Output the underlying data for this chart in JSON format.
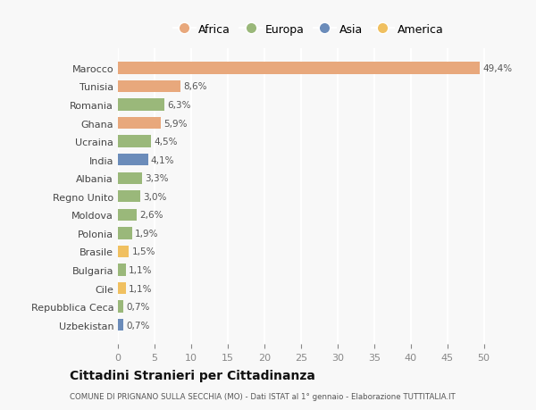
{
  "countries": [
    "Uzbekistan",
    "Repubblica Ceca",
    "Cile",
    "Bulgaria",
    "Brasile",
    "Polonia",
    "Moldova",
    "Regno Unito",
    "Albania",
    "India",
    "Ucraina",
    "Ghana",
    "Romania",
    "Tunisia",
    "Marocco"
  ],
  "values": [
    0.7,
    0.7,
    1.1,
    1.1,
    1.5,
    1.9,
    2.6,
    3.0,
    3.3,
    4.1,
    4.5,
    5.9,
    6.3,
    8.6,
    49.4
  ],
  "labels": [
    "0,7%",
    "0,7%",
    "1,1%",
    "1,1%",
    "1,5%",
    "1,9%",
    "2,6%",
    "3,0%",
    "3,3%",
    "4,1%",
    "4,5%",
    "5,9%",
    "6,3%",
    "8,6%",
    "49,4%"
  ],
  "colors": [
    "#6b8cba",
    "#9ab87a",
    "#f0c060",
    "#9ab87a",
    "#f0c060",
    "#9ab87a",
    "#9ab87a",
    "#9ab87a",
    "#9ab87a",
    "#6b8cba",
    "#9ab87a",
    "#e8a87c",
    "#9ab87a",
    "#e8a87c",
    "#e8a87c"
  ],
  "legend_labels": [
    "Africa",
    "Europa",
    "Asia",
    "America"
  ],
  "legend_colors": [
    "#e8a87c",
    "#9ab87a",
    "#6b8cba",
    "#f0c060"
  ],
  "title": "Cittadini Stranieri per Cittadinanza",
  "subtitle": "COMUNE DI PRIGNANO SULLA SECCHIA (MO) - Dati ISTAT al 1° gennaio - Elaborazione TUTTITALIA.IT",
  "xlim": [
    0,
    52
  ],
  "xticks": [
    0,
    5,
    10,
    15,
    20,
    25,
    30,
    35,
    40,
    45,
    50
  ],
  "background_color": "#f8f8f8",
  "grid_color": "#ffffff",
  "bar_height": 0.65
}
